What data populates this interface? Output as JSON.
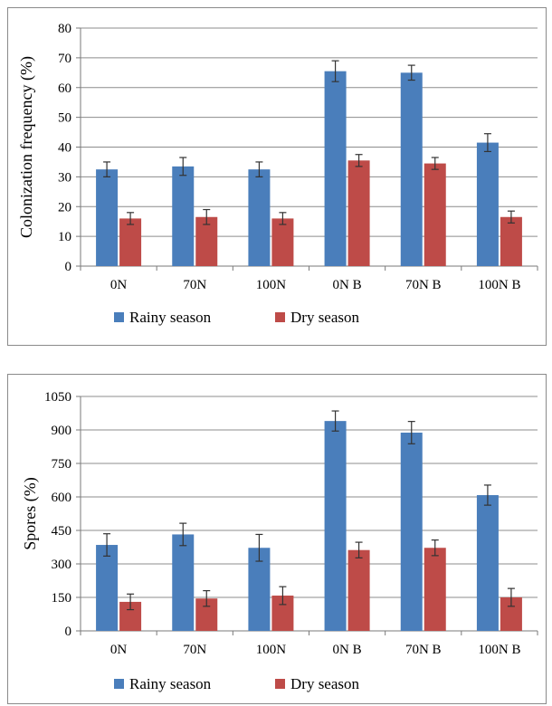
{
  "charts": [
    {
      "type": "bar",
      "categories": [
        "0N",
        "70N",
        "100N",
        "0N B",
        "70N B",
        "100N B"
      ],
      "series": [
        {
          "name": "Rainy season",
          "values": [
            32.5,
            33.5,
            32.5,
            65.5,
            65,
            41.5
          ],
          "errors": [
            2.5,
            3,
            2.5,
            3.5,
            2.5,
            3
          ],
          "color": "#4a7ebb"
        },
        {
          "name": "Dry season",
          "values": [
            16,
            16.5,
            16,
            35.5,
            34.5,
            16.5
          ],
          "errors": [
            2,
            2.5,
            2,
            2,
            2,
            2
          ],
          "color": "#be4b48"
        }
      ],
      "ylabel": "Colonization frequency (%)",
      "ylim": [
        0,
        80
      ],
      "yticks": [
        "0",
        "10",
        "20",
        "30",
        "40",
        "50",
        "60",
        "70",
        "80"
      ],
      "grid": true,
      "legend": "bottom"
    },
    {
      "type": "bar",
      "categories": [
        "0N",
        "70N",
        "100N",
        "0N B",
        "70N B",
        "100N B"
      ],
      "series": [
        {
          "name": "Rainy season",
          "values": [
            385,
            432,
            372,
            940,
            888,
            608
          ],
          "errors": [
            50,
            50,
            60,
            45,
            50,
            45
          ],
          "color": "#4a7ebb"
        },
        {
          "name": "Dry season",
          "values": [
            130,
            145,
            158,
            362,
            372,
            150
          ],
          "errors": [
            35,
            35,
            40,
            35,
            35,
            40
          ],
          "color": "#be4b48"
        }
      ],
      "ylabel": "Spores (%)",
      "ylim": [
        0,
        1050
      ],
      "yticks": [
        "0",
        "150",
        "300",
        "450",
        "600",
        "750",
        "900",
        "1050"
      ],
      "grid": true,
      "legend": "bottom"
    }
  ]
}
